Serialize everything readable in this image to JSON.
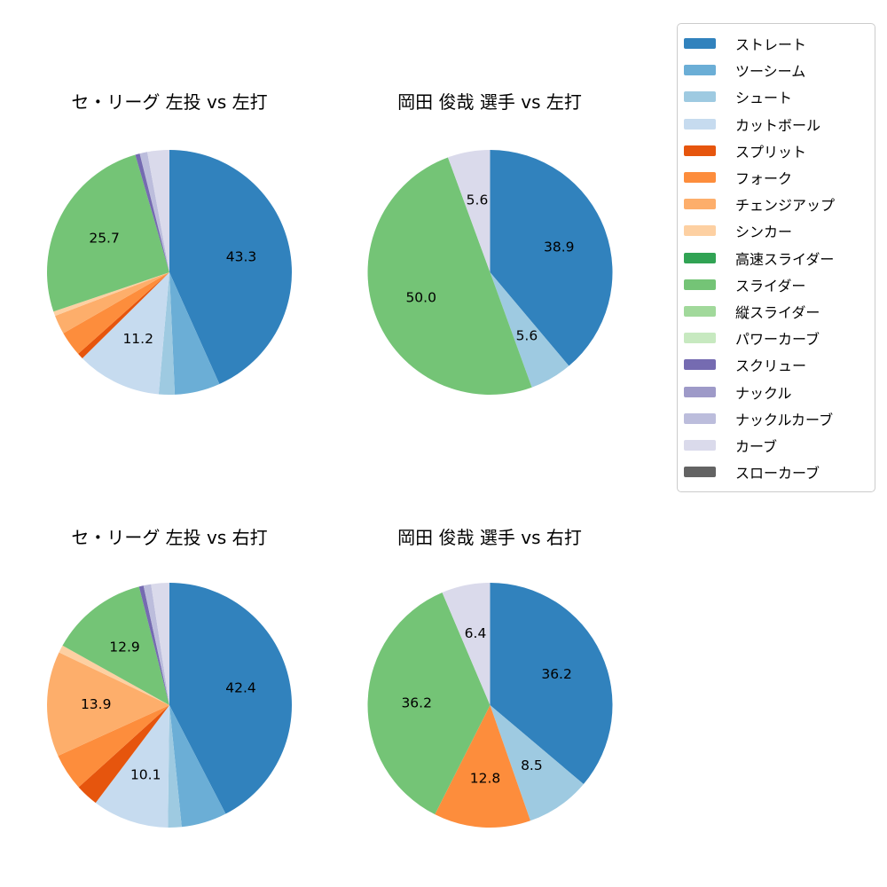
{
  "figure": {
    "background": "#ffffff",
    "text_color": "#000000"
  },
  "palette": {
    "ストレート": "#3182bd",
    "ツーシーム": "#6baed6",
    "シュート": "#9ecae1",
    "カットボール": "#c6dbef",
    "スプリット": "#e6550d",
    "フォーク": "#fd8d3c",
    "チェンジアップ": "#fdae6b",
    "シンカー": "#fdd0a2",
    "高速スライダー": "#31a354",
    "スライダー": "#74c476",
    "縦スライダー": "#a1d99b",
    "パワーカーブ": "#c7e9c0",
    "スクリュー": "#756bb1",
    "ナックル": "#9e9ac8",
    "ナックルカーブ": "#bcbddc",
    "カーブ": "#dadaeb",
    "スローカーブ": "#636363"
  },
  "legend": {
    "items": [
      "ストレート",
      "ツーシーム",
      "シュート",
      "カットボール",
      "スプリット",
      "フォーク",
      "チェンジアップ",
      "シンカー",
      "高速スライダー",
      "スライダー",
      "縦スライダー",
      "パワーカーブ",
      "スクリュー",
      "ナックル",
      "ナックルカーブ",
      "カーブ",
      "スローカーブ"
    ]
  },
  "chart_data": [
    {
      "type": "pie",
      "title": "セ・リーグ 左投 vs 左打",
      "start_angle": "12-oclock",
      "direction": "clockwise",
      "label_threshold_note": "only slices with a visible label string show text",
      "slices": [
        {
          "name": "ストレート",
          "value": 43.3,
          "label": "43.3"
        },
        {
          "name": "ツーシーム",
          "value": 6.0,
          "label": ""
        },
        {
          "name": "シュート",
          "value": 2.1,
          "label": ""
        },
        {
          "name": "カットボール",
          "value": 11.2,
          "label": "11.2"
        },
        {
          "name": "スプリット",
          "value": 0.8,
          "label": ""
        },
        {
          "name": "フォーク",
          "value": 3.3,
          "label": ""
        },
        {
          "name": "チェンジアップ",
          "value": 2.5,
          "label": ""
        },
        {
          "name": "シンカー",
          "value": 0.6,
          "label": ""
        },
        {
          "name": "スライダー",
          "value": 25.7,
          "label": "25.7"
        },
        {
          "name": "スクリュー",
          "value": 0.6,
          "label": ""
        },
        {
          "name": "ナックルカーブ",
          "value": 1.0,
          "label": ""
        },
        {
          "name": "カーブ",
          "value": 2.9,
          "label": ""
        }
      ]
    },
    {
      "type": "pie",
      "title": "岡田 俊哉 選手 vs 左打",
      "start_angle": "12-oclock",
      "direction": "clockwise",
      "slices": [
        {
          "name": "ストレート",
          "value": 38.9,
          "label": "38.9"
        },
        {
          "name": "シュート",
          "value": 5.6,
          "label": "5.6"
        },
        {
          "name": "スライダー",
          "value": 50.0,
          "label": "50.0"
        },
        {
          "name": "カーブ",
          "value": 5.6,
          "label": "5.6"
        }
      ]
    },
    {
      "type": "pie",
      "title": "セ・リーグ 左投 vs 右打",
      "start_angle": "12-oclock",
      "direction": "clockwise",
      "slices": [
        {
          "name": "ストレート",
          "value": 42.4,
          "label": "42.4"
        },
        {
          "name": "ツーシーム",
          "value": 6.0,
          "label": ""
        },
        {
          "name": "シュート",
          "value": 1.8,
          "label": ""
        },
        {
          "name": "カットボール",
          "value": 10.1,
          "label": "10.1"
        },
        {
          "name": "スプリット",
          "value": 3.0,
          "label": ""
        },
        {
          "name": "フォーク",
          "value": 4.9,
          "label": ""
        },
        {
          "name": "チェンジアップ",
          "value": 13.9,
          "label": "13.9"
        },
        {
          "name": "シンカー",
          "value": 1.0,
          "label": ""
        },
        {
          "name": "スライダー",
          "value": 12.9,
          "label": "12.9"
        },
        {
          "name": "スクリュー",
          "value": 0.6,
          "label": ""
        },
        {
          "name": "ナックルカーブ",
          "value": 1.0,
          "label": ""
        },
        {
          "name": "カーブ",
          "value": 2.4,
          "label": ""
        }
      ]
    },
    {
      "type": "pie",
      "title": "岡田 俊哉 選手 vs 右打",
      "start_angle": "12-oclock",
      "direction": "clockwise",
      "slices": [
        {
          "name": "ストレート",
          "value": 36.2,
          "label": "36.2"
        },
        {
          "name": "シュート",
          "value": 8.5,
          "label": "8.5"
        },
        {
          "name": "フォーク",
          "value": 12.8,
          "label": "12.8"
        },
        {
          "name": "スライダー",
          "value": 36.2,
          "label": "36.2"
        },
        {
          "name": "カーブ",
          "value": 6.4,
          "label": "6.4"
        }
      ]
    }
  ]
}
